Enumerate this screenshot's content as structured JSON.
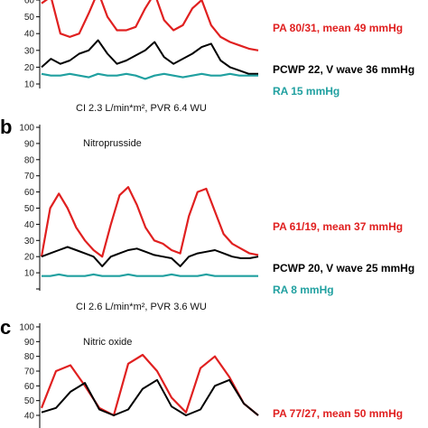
{
  "chart_data": [
    {
      "panel": "a",
      "type": "line",
      "title": "",
      "ylim": [
        10,
        60
      ],
      "yticks": [
        10,
        20,
        30,
        40,
        50,
        60
      ],
      "visible_yticks": [
        "10",
        "20",
        "30",
        "40",
        "50",
        "60"
      ],
      "note": "CI 2.3 L/min*m², PVR 6.4 WU",
      "series": [
        {
          "label": "PA 80/31, mean 49 mmHg",
          "color": "#e02020",
          "values": [
            58,
            62,
            40,
            38,
            40,
            52,
            65,
            50,
            42,
            42,
            44,
            55,
            64,
            48,
            42,
            45,
            55,
            60,
            45,
            38,
            35,
            33,
            31,
            30
          ]
        },
        {
          "label": "PCWP 22, V wave 36 mmHg",
          "color": "#000000",
          "values": [
            20,
            25,
            22,
            24,
            28,
            30,
            36,
            28,
            22,
            24,
            27,
            30,
            35,
            26,
            22,
            25,
            28,
            32,
            34,
            24,
            20,
            18,
            16,
            16
          ]
        },
        {
          "label": "RA 15 mmHg",
          "color": "#20a0a0",
          "values": [
            16,
            15,
            15,
            16,
            15,
            14,
            16,
            15,
            15,
            16,
            15,
            13,
            15,
            16,
            15,
            14,
            15,
            16,
            15,
            15,
            16,
            15,
            15,
            15
          ]
        }
      ]
    },
    {
      "panel": "b",
      "type": "line",
      "title": "Nitroprusside",
      "ylim": [
        0,
        100
      ],
      "yticks": [
        0,
        10,
        20,
        30,
        40,
        50,
        60,
        70,
        80,
        90,
        100
      ],
      "visible_yticks": [
        "",
        "10",
        "20",
        "30",
        "40",
        "50",
        "60",
        "70",
        "80",
        "90",
        "100"
      ],
      "note": "CI 2.6 L/min*m², PVR 3.6 WU",
      "series": [
        {
          "label": "PA 61/19, mean 37 mmHg",
          "color": "#e02020",
          "values": [
            20,
            50,
            59,
            50,
            38,
            30,
            24,
            20,
            40,
            58,
            63,
            52,
            38,
            30,
            28,
            24,
            22,
            45,
            60,
            62,
            48,
            34,
            28,
            25,
            22,
            21
          ]
        },
        {
          "label": "PCWP 20, V wave 25 mmHg",
          "color": "#000000",
          "values": [
            20,
            22,
            24,
            26,
            24,
            22,
            20,
            14,
            20,
            22,
            24,
            25,
            23,
            21,
            20,
            19,
            14,
            20,
            22,
            23,
            24,
            22,
            20,
            19,
            19,
            20
          ]
        },
        {
          "label": "RA 8 mmHg",
          "color": "#20a0a0",
          "values": [
            8,
            8,
            9,
            8,
            8,
            8,
            9,
            8,
            8,
            8,
            9,
            8,
            8,
            8,
            8,
            9,
            8,
            8,
            8,
            9,
            8,
            8,
            8,
            8,
            8,
            8
          ]
        }
      ]
    },
    {
      "panel": "c",
      "type": "line",
      "title": "Nitric oxide",
      "ylim": [
        40,
        100
      ],
      "yticks": [
        40,
        50,
        60,
        70,
        80,
        90,
        100
      ],
      "visible_yticks": [
        "40",
        "50",
        "60",
        "70",
        "80",
        "90",
        "100"
      ],
      "note": "",
      "series": [
        {
          "label": "PA 77/27, mean 50 mmHg",
          "color": "#e02020",
          "values": [
            45,
            70,
            74,
            60,
            45,
            40,
            75,
            81,
            70,
            52,
            42,
            72,
            80,
            66,
            48,
            40
          ]
        },
        {
          "label": "",
          "color": "#000000",
          "values": [
            42,
            45,
            56,
            62,
            44,
            40,
            44,
            58,
            64,
            46,
            40,
            44,
            60,
            64,
            48,
            40
          ]
        }
      ]
    }
  ],
  "panels": [
    {
      "letter": "",
      "title": ""
    },
    {
      "letter": "b",
      "title": "Nitroprusside"
    },
    {
      "letter": "c",
      "title": "Nitric oxide"
    }
  ],
  "labels": {
    "a_pa": "PA 80/31, mean 49 mmHg",
    "a_pcwp": "PCWP 22, V wave 36 mmHg",
    "a_ra": "RA 15 mmHg",
    "a_note": "CI 2.3 L/min*m², PVR 6.4 WU",
    "b_pa": "PA 61/19, mean 37 mmHg",
    "b_pcwp": "PCWP 20, V wave 25 mmHg",
    "b_ra": "RA 8 mmHg",
    "b_note": "CI 2.6 L/min*m², PVR 3.6 WU",
    "c_pa": "PA 77/27, mean 50 mmHg"
  },
  "colors": {
    "pa": "#e02020",
    "pcwp": "#000000",
    "ra": "#20a0a0"
  }
}
